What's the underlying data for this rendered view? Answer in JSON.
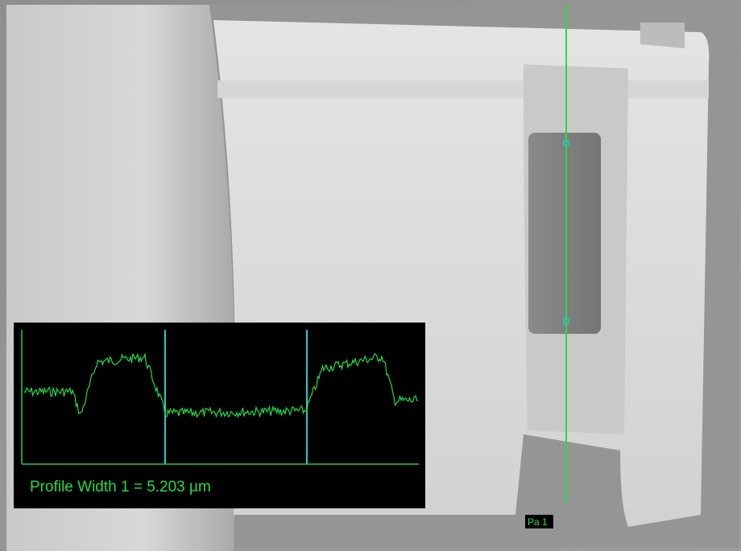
{
  "measurement": {
    "profile_label": "Profile Width 1 = 5.203 µm",
    "marker_label": "Pa 1"
  }
}
